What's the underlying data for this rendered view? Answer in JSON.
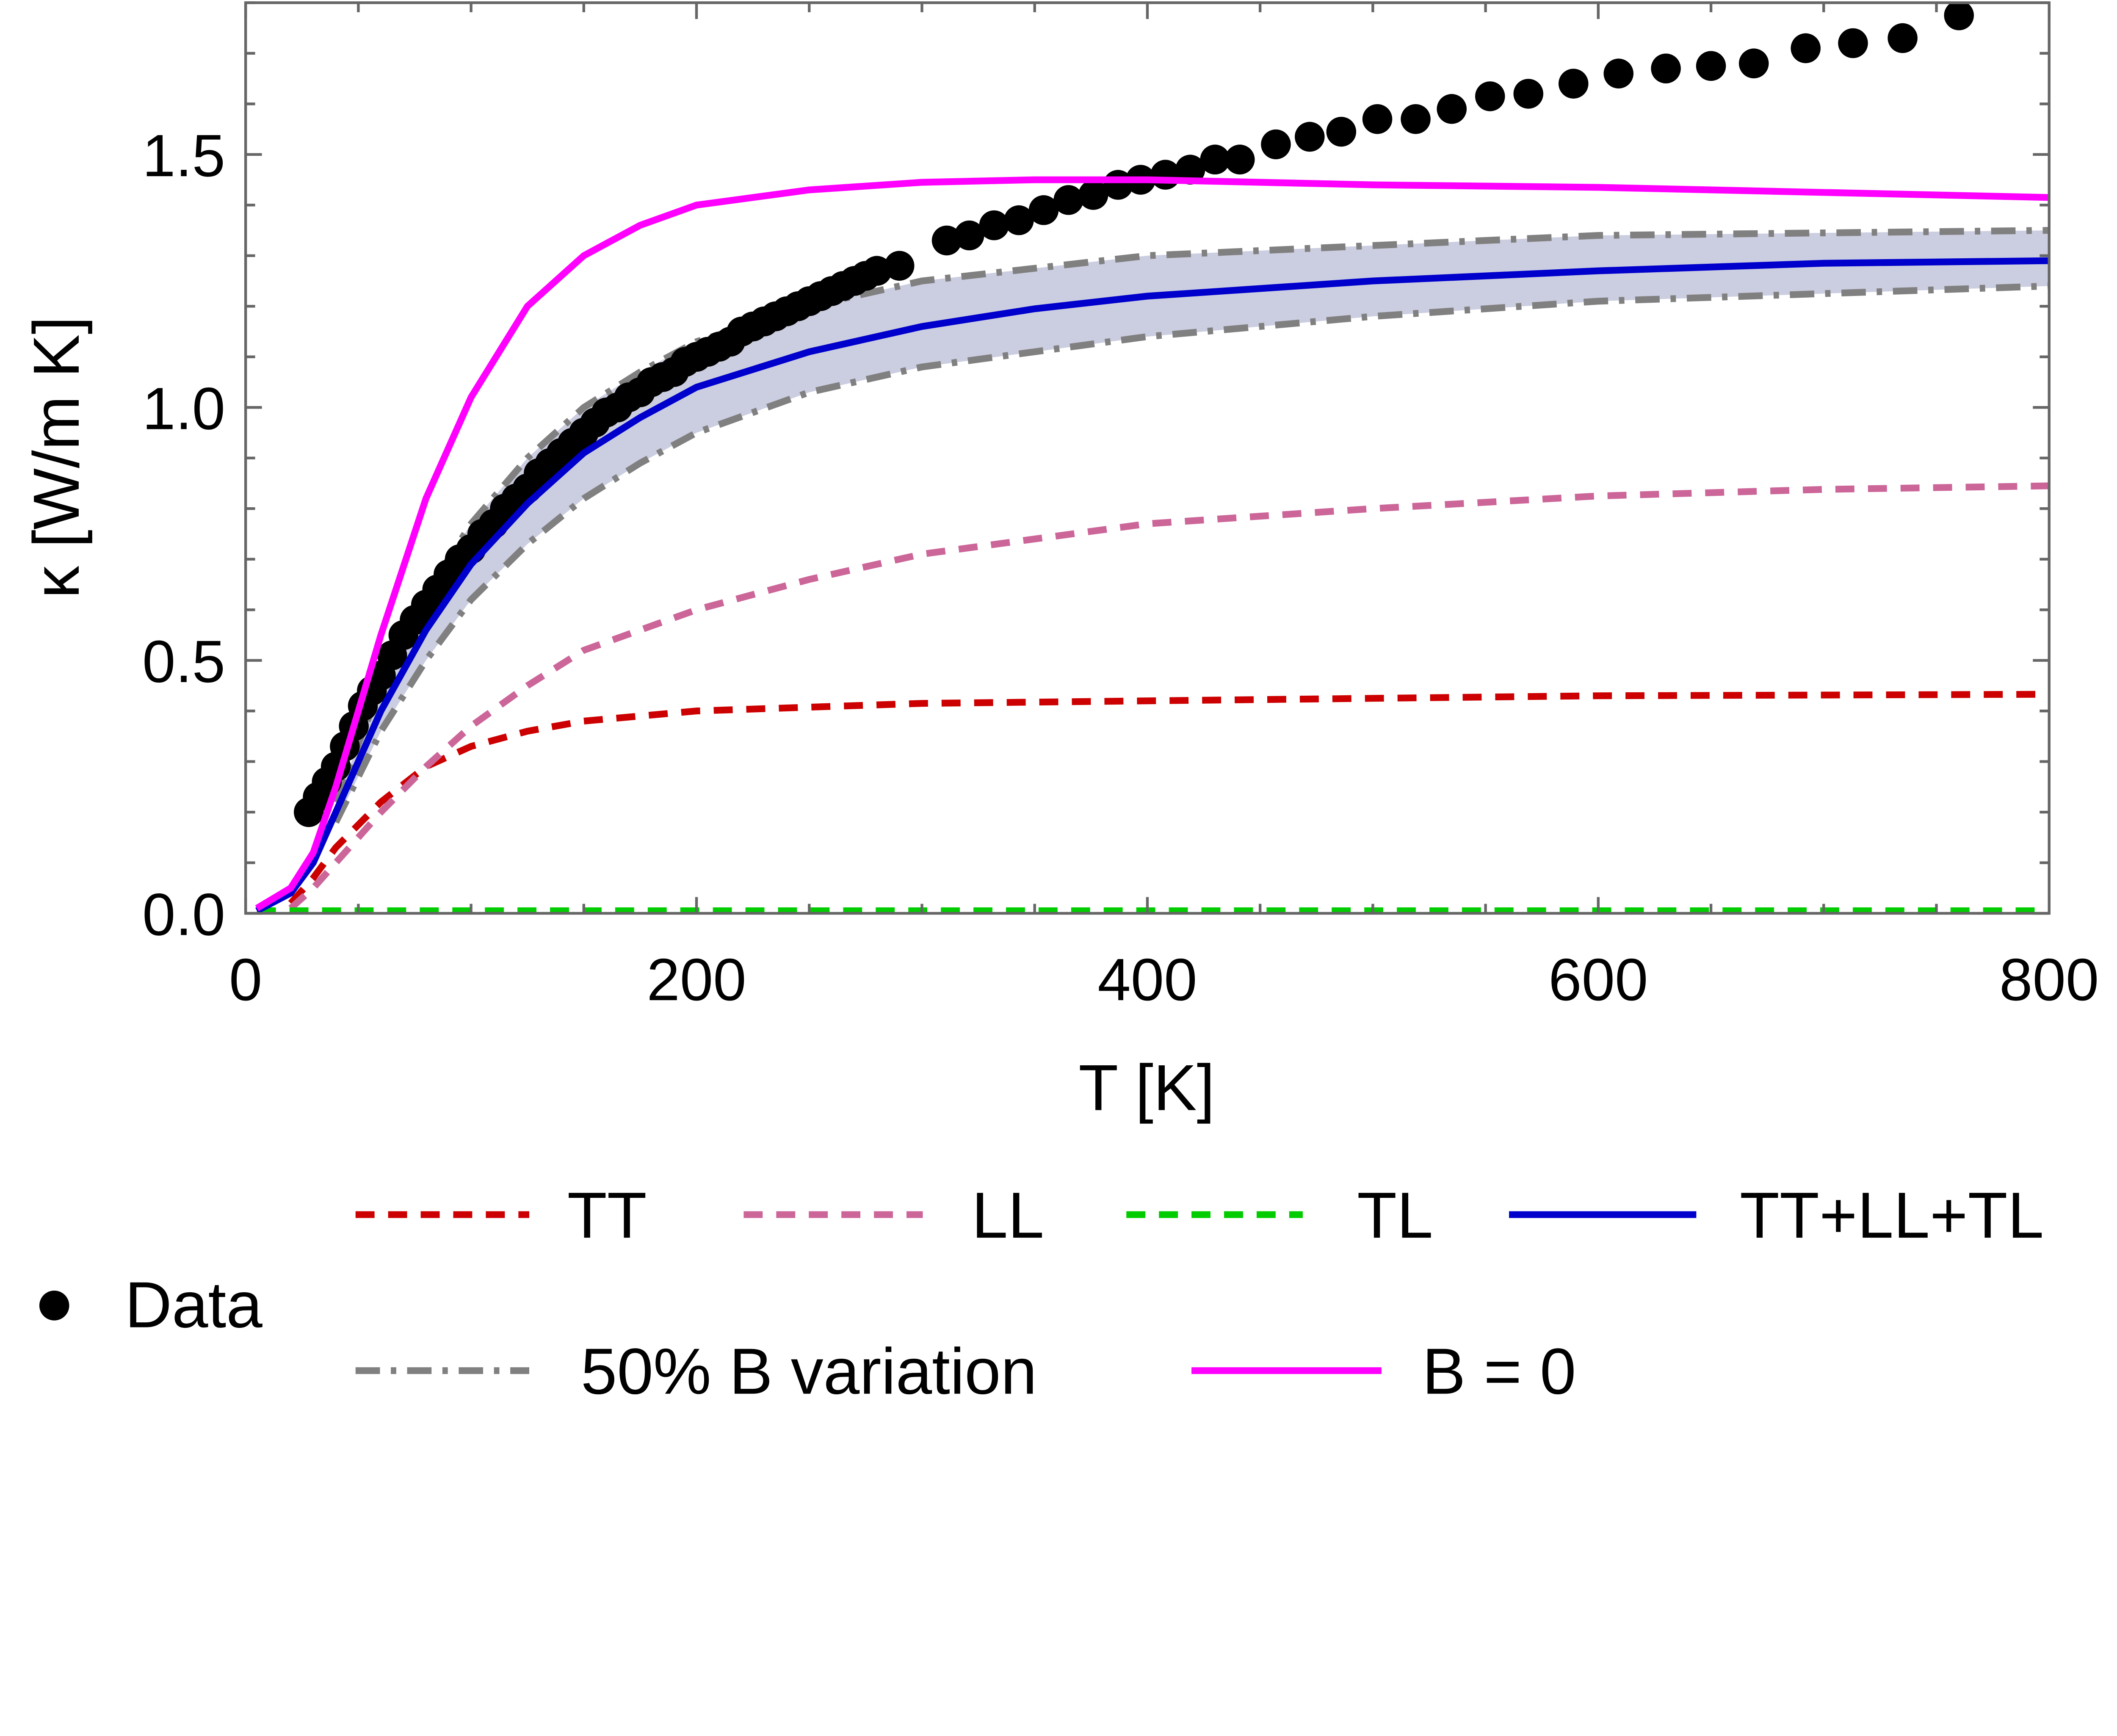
{
  "chart_data": {
    "type": "line",
    "xlabel": "T [K]",
    "ylabel": "κ [W/m K]",
    "xlim": [
      0,
      800
    ],
    "ylim": [
      0,
      1.8
    ],
    "xticks": [
      0,
      200,
      400,
      600,
      800
    ],
    "xtick_labels": [
      "0",
      "200",
      "400",
      "600",
      "800"
    ],
    "yticks": [
      0,
      0.5,
      1.0,
      1.5
    ],
    "ytick_labels": [
      "0.0",
      "0.5",
      "1.0",
      "1.5"
    ],
    "grid": false,
    "legend_placement": "bottom",
    "data_points": {
      "name": "Data",
      "color": "#000000",
      "x": [
        28,
        32,
        36,
        40,
        44,
        48,
        52,
        56,
        60,
        65,
        70,
        75,
        80,
        85,
        90,
        95,
        100,
        105,
        110,
        115,
        120,
        125,
        130,
        135,
        140,
        145,
        150,
        155,
        160,
        165,
        170,
        175,
        180,
        185,
        190,
        195,
        200,
        205,
        210,
        215,
        220,
        225,
        230,
        235,
        240,
        245,
        250,
        255,
        260,
        265,
        270,
        275,
        280,
        290,
        311,
        321,
        332,
        343,
        354,
        365,
        376,
        387,
        397,
        408,
        419,
        430,
        441,
        457,
        472,
        486,
        502,
        519,
        535,
        552,
        569,
        589,
        609,
        630,
        650,
        669,
        692,
        713,
        735,
        760
      ],
      "y": [
        0.2,
        0.23,
        0.26,
        0.29,
        0.33,
        0.37,
        0.41,
        0.44,
        0.47,
        0.51,
        0.55,
        0.58,
        0.61,
        0.64,
        0.67,
        0.7,
        0.72,
        0.75,
        0.77,
        0.8,
        0.82,
        0.84,
        0.87,
        0.89,
        0.91,
        0.93,
        0.95,
        0.97,
        0.99,
        1.0,
        1.02,
        1.03,
        1.05,
        1.06,
        1.07,
        1.09,
        1.1,
        1.11,
        1.12,
        1.13,
        1.15,
        1.16,
        1.17,
        1.18,
        1.19,
        1.2,
        1.21,
        1.22,
        1.23,
        1.24,
        1.25,
        1.26,
        1.27,
        1.28,
        1.33,
        1.34,
        1.36,
        1.37,
        1.39,
        1.41,
        1.42,
        1.44,
        1.45,
        1.46,
        1.47,
        1.49,
        1.49,
        1.52,
        1.535,
        1.545,
        1.57,
        1.57,
        1.59,
        1.615,
        1.62,
        1.64,
        1.66,
        1.67,
        1.675,
        1.68,
        1.71,
        1.72,
        1.73,
        1.775
      ]
    },
    "band": {
      "color": "#cbcde0",
      "x": [
        40,
        60,
        80,
        100,
        125,
        150,
        175,
        200,
        250,
        300,
        400,
        500,
        600,
        800
      ],
      "upper": [
        0.22,
        0.45,
        0.63,
        0.77,
        0.9,
        1.0,
        1.07,
        1.13,
        1.2,
        1.25,
        1.3,
        1.32,
        1.34,
        1.35
      ],
      "lower": [
        0.18,
        0.36,
        0.5,
        0.62,
        0.73,
        0.82,
        0.89,
        0.95,
        1.03,
        1.08,
        1.14,
        1.18,
        1.21,
        1.24
      ]
    },
    "series": [
      {
        "name": "TT",
        "color": "#cc0000",
        "style": "dashed",
        "x": [
          20,
          30,
          40,
          60,
          80,
          100,
          125,
          150,
          200,
          300,
          400,
          500,
          600,
          800
        ],
        "y": [
          0.02,
          0.07,
          0.13,
          0.22,
          0.29,
          0.33,
          0.36,
          0.38,
          0.4,
          0.415,
          0.42,
          0.425,
          0.43,
          0.433
        ]
      },
      {
        "name": "LL",
        "color": "#cc6699",
        "style": "dashed",
        "x": [
          20,
          30,
          40,
          60,
          80,
          100,
          125,
          150,
          200,
          250,
          300,
          400,
          500,
          600,
          700,
          800
        ],
        "y": [
          0.01,
          0.05,
          0.1,
          0.2,
          0.29,
          0.37,
          0.45,
          0.52,
          0.6,
          0.66,
          0.71,
          0.77,
          0.8,
          0.825,
          0.838,
          0.845
        ]
      },
      {
        "name": "TL",
        "color": "#00cc00",
        "style": "dashed",
        "x": [
          5,
          800
        ],
        "y": [
          0.005,
          0.005
        ]
      },
      {
        "name": "TT+LL+TL",
        "color": "#0000cc",
        "style": "solid",
        "x": [
          5,
          20,
          30,
          40,
          50,
          60,
          80,
          100,
          125,
          150,
          175,
          200,
          250,
          300,
          350,
          400,
          500,
          600,
          700,
          800
        ],
        "y": [
          0.005,
          0.04,
          0.1,
          0.2,
          0.3,
          0.4,
          0.56,
          0.69,
          0.81,
          0.91,
          0.98,
          1.04,
          1.11,
          1.16,
          1.195,
          1.22,
          1.25,
          1.27,
          1.285,
          1.29
        ]
      },
      {
        "name": "50% B variation",
        "color": "#808080",
        "style": "dashdot",
        "x": [
          40,
          60,
          80,
          100,
          125,
          150,
          175,
          200,
          250,
          300,
          400,
          500,
          600,
          800
        ],
        "y": [
          0.22,
          0.45,
          0.63,
          0.77,
          0.9,
          1.0,
          1.07,
          1.13,
          1.2,
          1.25,
          1.3,
          1.32,
          1.34,
          1.35
        ],
        "y_lower": [
          0.18,
          0.36,
          0.5,
          0.62,
          0.73,
          0.82,
          0.89,
          0.95,
          1.03,
          1.08,
          1.14,
          1.18,
          1.21,
          1.24
        ]
      },
      {
        "name": "B = 0",
        "color": "#ff00ff",
        "style": "solid",
        "x": [
          5,
          20,
          30,
          40,
          50,
          60,
          80,
          100,
          125,
          150,
          175,
          200,
          250,
          300,
          350,
          400,
          500,
          600,
          700,
          800
        ],
        "y": [
          0.01,
          0.05,
          0.12,
          0.25,
          0.4,
          0.55,
          0.82,
          1.02,
          1.2,
          1.3,
          1.36,
          1.4,
          1.43,
          1.445,
          1.45,
          1.45,
          1.44,
          1.435,
          1.425,
          1.415
        ]
      }
    ]
  }
}
